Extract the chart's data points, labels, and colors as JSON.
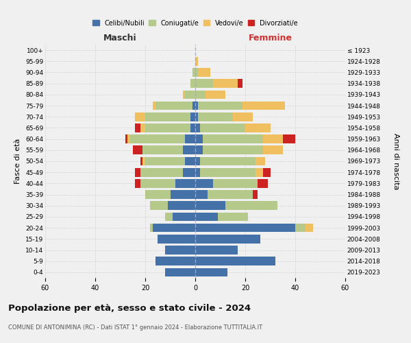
{
  "age_groups_bottom_to_top": [
    "0-4",
    "5-9",
    "10-14",
    "15-19",
    "20-24",
    "25-29",
    "30-34",
    "35-39",
    "40-44",
    "45-49",
    "50-54",
    "55-59",
    "60-64",
    "65-69",
    "70-74",
    "75-79",
    "80-84",
    "85-89",
    "90-94",
    "95-99",
    "100+"
  ],
  "birth_years_bottom_to_top": [
    "2019-2023",
    "2014-2018",
    "2009-2013",
    "2004-2008",
    "1999-2003",
    "1994-1998",
    "1989-1993",
    "1984-1988",
    "1979-1983",
    "1974-1978",
    "1969-1973",
    "1964-1968",
    "1959-1963",
    "1954-1958",
    "1949-1953",
    "1944-1948",
    "1939-1943",
    "1934-1938",
    "1929-1933",
    "1924-1928",
    "≤ 1923"
  ],
  "maschi": {
    "celibi": [
      12,
      16,
      12,
      15,
      17,
      9,
      11,
      10,
      8,
      5,
      4,
      5,
      4,
      2,
      2,
      1,
      0,
      0,
      0,
      0,
      0
    ],
    "coniugati": [
      0,
      0,
      0,
      0,
      1,
      3,
      7,
      10,
      14,
      17,
      16,
      16,
      22,
      18,
      18,
      15,
      4,
      2,
      1,
      0,
      0
    ],
    "vedove": [
      0,
      0,
      0,
      0,
      0,
      0,
      0,
      0,
      0,
      0,
      1,
      0,
      1,
      2,
      4,
      1,
      1,
      0,
      0,
      0,
      0
    ],
    "divorziate": [
      0,
      0,
      0,
      0,
      0,
      0,
      0,
      0,
      2,
      2,
      1,
      4,
      1,
      2,
      0,
      0,
      0,
      0,
      0,
      0,
      0
    ]
  },
  "femmine": {
    "nubili": [
      13,
      32,
      17,
      26,
      40,
      9,
      12,
      5,
      7,
      2,
      2,
      3,
      3,
      2,
      1,
      1,
      0,
      0,
      0,
      0,
      0
    ],
    "coniugate": [
      0,
      0,
      0,
      0,
      4,
      12,
      21,
      18,
      18,
      22,
      22,
      24,
      24,
      18,
      14,
      18,
      4,
      7,
      1,
      0,
      0
    ],
    "vedove": [
      0,
      0,
      0,
      0,
      3,
      0,
      0,
      0,
      0,
      3,
      4,
      8,
      8,
      10,
      8,
      17,
      8,
      10,
      5,
      1,
      0
    ],
    "divorziate": [
      0,
      0,
      0,
      0,
      0,
      0,
      0,
      2,
      4,
      3,
      0,
      0,
      5,
      0,
      0,
      0,
      0,
      2,
      0,
      0,
      0
    ]
  },
  "colors": {
    "celibi": "#4472a8",
    "coniugati": "#b5c98a",
    "vedove": "#f0c060",
    "divorziate": "#cc2222"
  },
  "xlim": 60,
  "title": "Popolazione per età, sesso e stato civile - 2024",
  "subtitle": "COMUNE DI ANTONIMINA (RC) - Dati ISTAT 1° gennaio 2024 - Elaborazione TUTTITALIA.IT",
  "ylabel_left": "Fasce di età",
  "ylabel_right": "Anni di nascita",
  "xlabel_left": "Maschi",
  "xlabel_right": "Femmine",
  "bg_color": "#f0f0f0",
  "grid_color": "#cccccc"
}
